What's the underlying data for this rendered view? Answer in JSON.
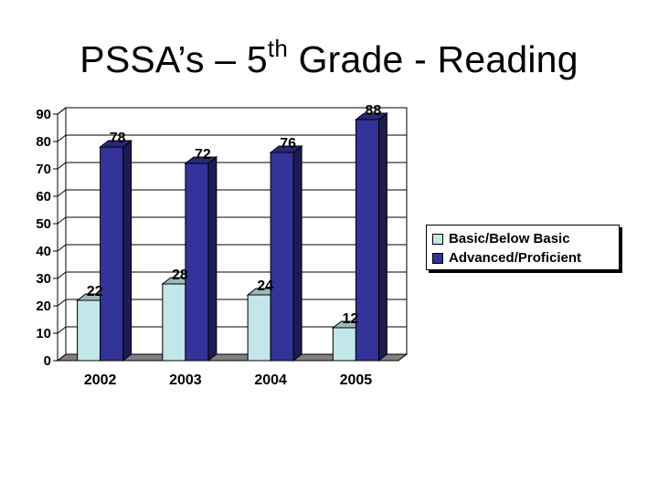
{
  "slide": {
    "title_pre": "PSSA’s – 5",
    "title_sup": "th",
    "title_post": " Grade - Reading"
  },
  "chart_data": {
    "type": "bar",
    "categories": [
      "2002",
      "2003",
      "2004",
      "2005"
    ],
    "series": [
      {
        "name": "Basic/Below Basic",
        "values": [
          22,
          28,
          24,
          12
        ],
        "color": "#c3e6e9"
      },
      {
        "name": "Advanced/Proficient",
        "values": [
          78,
          72,
          76,
          88
        ],
        "color": "#333399"
      }
    ],
    "yticks": [
      "0",
      "10",
      "20",
      "30",
      "40",
      "50",
      "60",
      "70",
      "80",
      "90"
    ],
    "ylim": [
      0,
      90
    ],
    "grid": true,
    "legend": "right",
    "style": "3d-column"
  }
}
